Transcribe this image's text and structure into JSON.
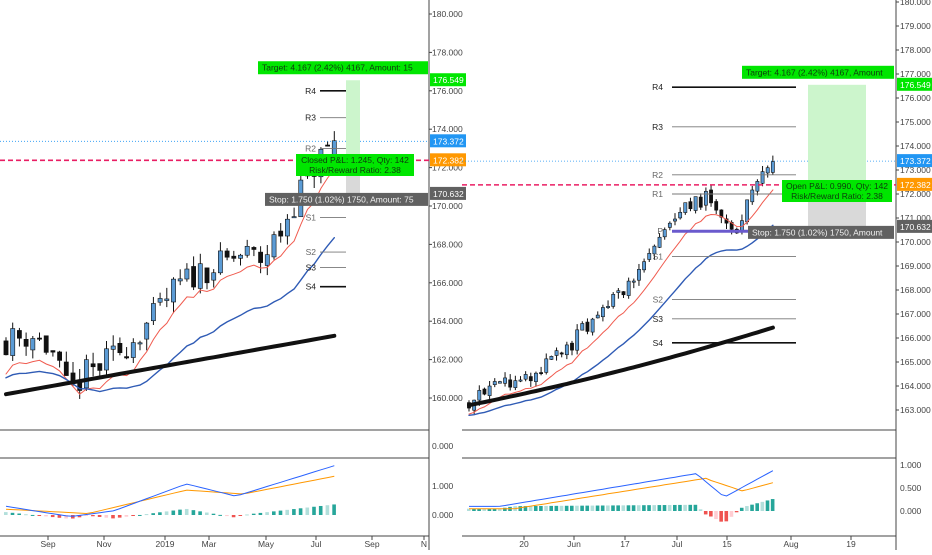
{
  "chart_data": [
    {
      "type": "candlestick",
      "panel": "left",
      "interval": "weekly",
      "y_ticks": [
        "180.000",
        "178.000",
        "176.000",
        "174.000",
        "172.000",
        "170.000",
        "168.000",
        "166.000",
        "164.000",
        "162.000",
        "160.000"
      ],
      "ylim": [
        159,
        181
      ],
      "x_ticks": [
        "Sep",
        "Nov",
        "2019",
        "Mar",
        "May",
        "Jul",
        "Sep",
        "N"
      ],
      "price_tags": [
        {
          "label": "176.549",
          "value": 176.55,
          "color": "#00e600"
        },
        {
          "label": "173.372",
          "value": 173.37,
          "color": "#2196f3"
        },
        {
          "label": "172.382",
          "value": 172.38,
          "color": "#ff9800"
        },
        {
          "label": "170.632",
          "value": 170.63,
          "color": "#616161"
        }
      ],
      "pivots": [
        {
          "label": "R4",
          "value": 176.0
        },
        {
          "label": "R3",
          "value": 174.6
        },
        {
          "label": "R2",
          "value": 173.0
        },
        {
          "label": "S1",
          "value": 169.4
        },
        {
          "label": "S2",
          "value": 167.6
        },
        {
          "label": "S3",
          "value": 166.8
        },
        {
          "label": "S4",
          "value": 165.8
        }
      ],
      "position": {
        "target_label": "Target: 4.167 (2.42%) 4167, Amount: 15",
        "stop_label": "Stop: 1.750 (1.02%) 1750, Amount: 75",
        "info_lines": [
          "Closed P&L: 1.245, Qty: 142",
          "Risk/Reward Ratio: 2.38"
        ],
        "entry": 172.38,
        "target": 176.55,
        "stop": 170.63
      },
      "macd": {
        "y_ticks": [
          "0.000",
          "1.000",
          "0.000"
        ]
      }
    },
    {
      "type": "candlestick",
      "panel": "right",
      "interval": "daily",
      "y_ticks": [
        "180.000",
        "179.000",
        "178.000",
        "177.000",
        "176.000",
        "175.000",
        "174.000",
        "173.000",
        "172.000",
        "171.000",
        "170.000",
        "169.000",
        "168.000",
        "167.000",
        "166.000",
        "165.000",
        "164.000",
        "163.000"
      ],
      "ylim": [
        162.5,
        180.2
      ],
      "x_ticks": [
        "20",
        "Jun",
        "17",
        "Jul",
        "15",
        "Aug",
        "19"
      ],
      "price_tags": [
        {
          "label": "176.549",
          "value": 176.55,
          "color": "#00e600"
        },
        {
          "label": "173.372",
          "value": 173.37,
          "color": "#2196f3"
        },
        {
          "label": "172.382",
          "value": 172.38,
          "color": "#ff9800"
        },
        {
          "label": "170.632",
          "value": 170.63,
          "color": "#616161"
        }
      ],
      "pivots": [
        {
          "label": "R4",
          "value": 176.45
        },
        {
          "label": "R3",
          "value": 174.8
        },
        {
          "label": "R2",
          "value": 172.8
        },
        {
          "label": "R1",
          "value": 172.0
        },
        {
          "label": "P",
          "value": 170.45
        },
        {
          "label": "S1",
          "value": 169.4
        },
        {
          "label": "S2",
          "value": 167.6
        },
        {
          "label": "S3",
          "value": 166.8
        },
        {
          "label": "S4",
          "value": 165.8
        }
      ],
      "position": {
        "target_label": "Target: 4.167 (2.42%) 4167, Amount",
        "stop_label": "Stop: 1.750 (1.02%) 1750, Amount",
        "info_lines": [
          "Open P&L: 0.990, Qty: 142",
          "Risk/Reward Ratio: 2.38"
        ],
        "entry": 172.38,
        "target": 176.55,
        "stop": 170.63
      },
      "macd": {
        "y_ticks": [
          "1.000",
          "0.500",
          "0.000"
        ]
      }
    }
  ]
}
